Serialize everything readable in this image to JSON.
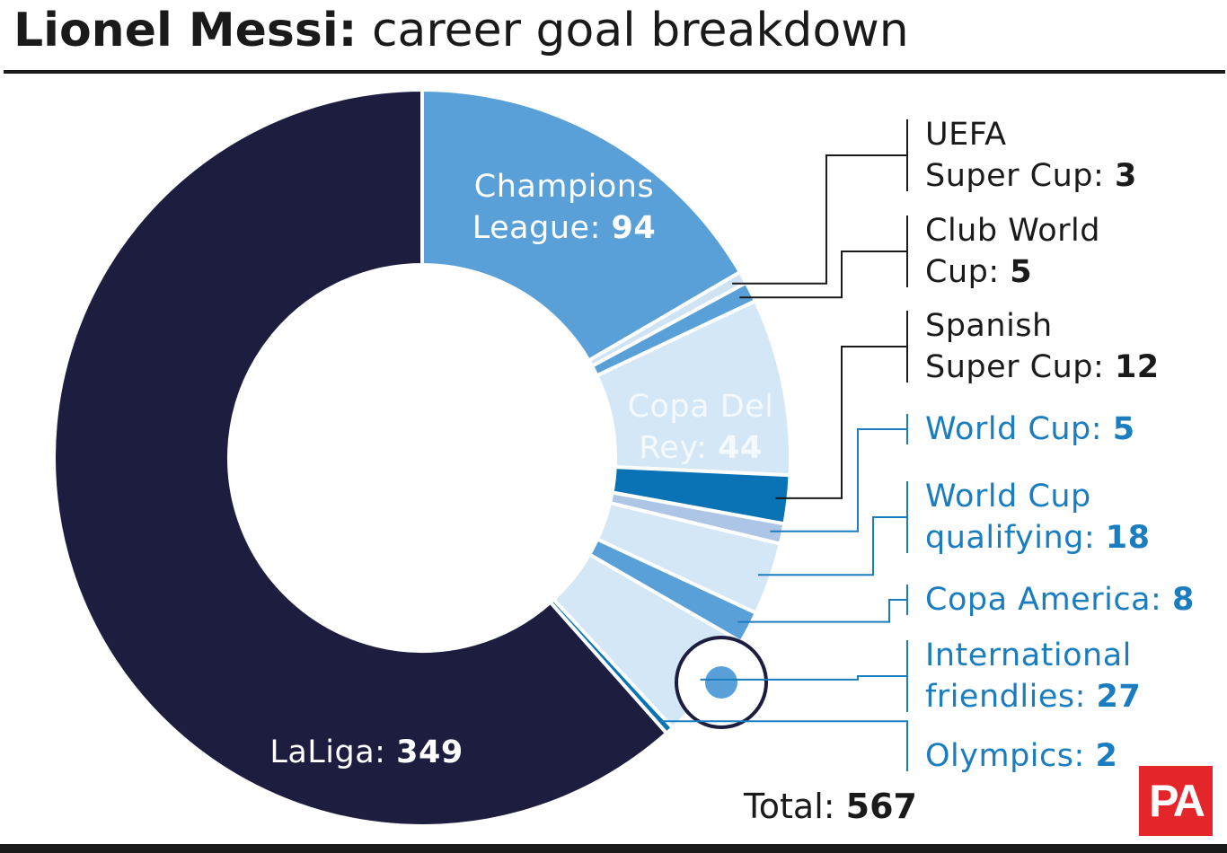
{
  "chart_data": {
    "type": "donut",
    "title": "Lionel Messi:",
    "subtitle": "career goal breakdown",
    "categories": [
      "Champions League:",
      "UEFA Super Cup:",
      "Club World Cup:",
      "Copa Del Rey:",
      "Spanish Super Cup:",
      "World Cup:",
      "World Cup qualifying:",
      "Copa America:",
      "International friendlies:",
      "Olympics:",
      "LaLiga:"
    ],
    "values": [
      94,
      3,
      5,
      44,
      12,
      5,
      18,
      8,
      27,
      2,
      349
    ],
    "colors": [
      "#5aa0d8",
      "#cfe3f5",
      "#5aa0d8",
      "#d4e7f6",
      "#0a73b5",
      "#aec6e6",
      "#d4e7f6",
      "#5aa0d8",
      "#d4e7f6",
      "#0a73b5",
      "#1c1d3f"
    ],
    "label_colors": [
      "#ffffff",
      "#1a1a1a",
      "#1a1a1a",
      "#f4f9fd",
      "#1a1a1a",
      "#1a7dbf",
      "#1a7dbf",
      "#1a7dbf",
      "#1a7dbf",
      "#1a7dbf",
      "#ffffff"
    ],
    "total_label": "Total:",
    "total": 567,
    "logo": "PA"
  }
}
